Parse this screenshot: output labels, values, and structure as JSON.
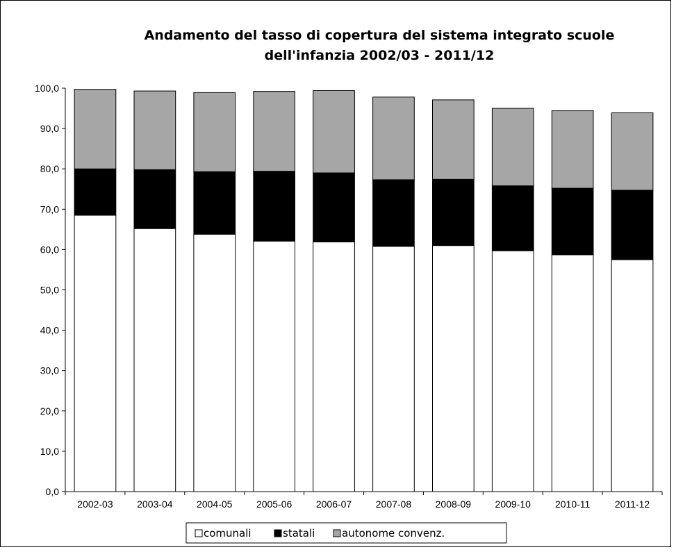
{
  "chart_data": {
    "type": "bar",
    "stacked": true,
    "title_lines": [
      "Andamento del tasso di copertura del sistema integrato scuole",
      "dell'infanzia 2002/03 - 2011/12"
    ],
    "xlabel": "",
    "ylabel": "",
    "categories": [
      "2002-03",
      "2003-04",
      "2004-05",
      "2005-06",
      "2006-07",
      "2007-08",
      "2008-09",
      "2009-10",
      "2010-11",
      "2011-12"
    ],
    "series": [
      {
        "name": "comunali",
        "color": "#ffffff",
        "values": [
          68.5,
          65.2,
          63.8,
          62.1,
          61.9,
          60.8,
          61.0,
          59.7,
          58.7,
          57.5
        ]
      },
      {
        "name": "statali",
        "color": "#000000",
        "values": [
          11.5,
          14.6,
          15.5,
          17.3,
          17.1,
          16.5,
          16.4,
          16.1,
          16.5,
          17.2
        ]
      },
      {
        "name": "autonome convenz.",
        "color": "#a6a6a6",
        "values": [
          19.7,
          19.5,
          19.6,
          19.8,
          20.4,
          20.5,
          19.7,
          19.2,
          19.2,
          19.2
        ]
      }
    ],
    "ylim": [
      0,
      100
    ],
    "yticks": [
      "0,0",
      "10,0",
      "20,0",
      "30,0",
      "40,0",
      "50,0",
      "60,0",
      "70,0",
      "80,0",
      "90,0",
      "100,0"
    ],
    "grid": false,
    "legend_position": "bottom"
  }
}
